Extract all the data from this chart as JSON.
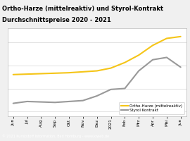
{
  "title_line1": "Ortho-Harze (mittelreaktiv) und Styrol-Kontrakt",
  "title_line2": "Durchschnittspreise 2020 - 2021",
  "title_bg": "#f5c518",
  "title_color": "#000000",
  "footer_text": "© 2021 Kunststoff Information, Bad Homburg - www.kiweb.de",
  "footer_bg": "#888888",
  "footer_color": "#ffffff",
  "x_labels": [
    "Jun",
    "Jul",
    "Aug",
    "Sep",
    "Okt",
    "Nov",
    "Dez",
    "2021",
    "Feb",
    "Mrz",
    "Apr",
    "Mai",
    "Jun"
  ],
  "ortho_color": "#f5c518",
  "styrol_color": "#999999",
  "plot_bg": "#ffffff",
  "fig_bg": "#f0f0f0",
  "grid_color": "#dddddd",
  "legend_label_ortho": "Ortho-Harze (mittelreaktiv)",
  "legend_label_styrol": "Styrol Kontrakt",
  "ortho_values": [
    1.3,
    1.31,
    1.32,
    1.33,
    1.34,
    1.36,
    1.38,
    1.44,
    1.56,
    1.72,
    1.93,
    2.08,
    2.12
  ],
  "styrol_values": [
    0.68,
    0.72,
    0.71,
    0.7,
    0.72,
    0.74,
    0.84,
    0.98,
    1.0,
    1.38,
    1.62,
    1.67,
    1.46
  ],
  "ylim": [
    0.4,
    2.3
  ],
  "line_width": 1.5,
  "title_fontsize": 6.0,
  "tick_fontsize": 4.2,
  "legend_fontsize": 4.0,
  "footer_fontsize": 3.5
}
